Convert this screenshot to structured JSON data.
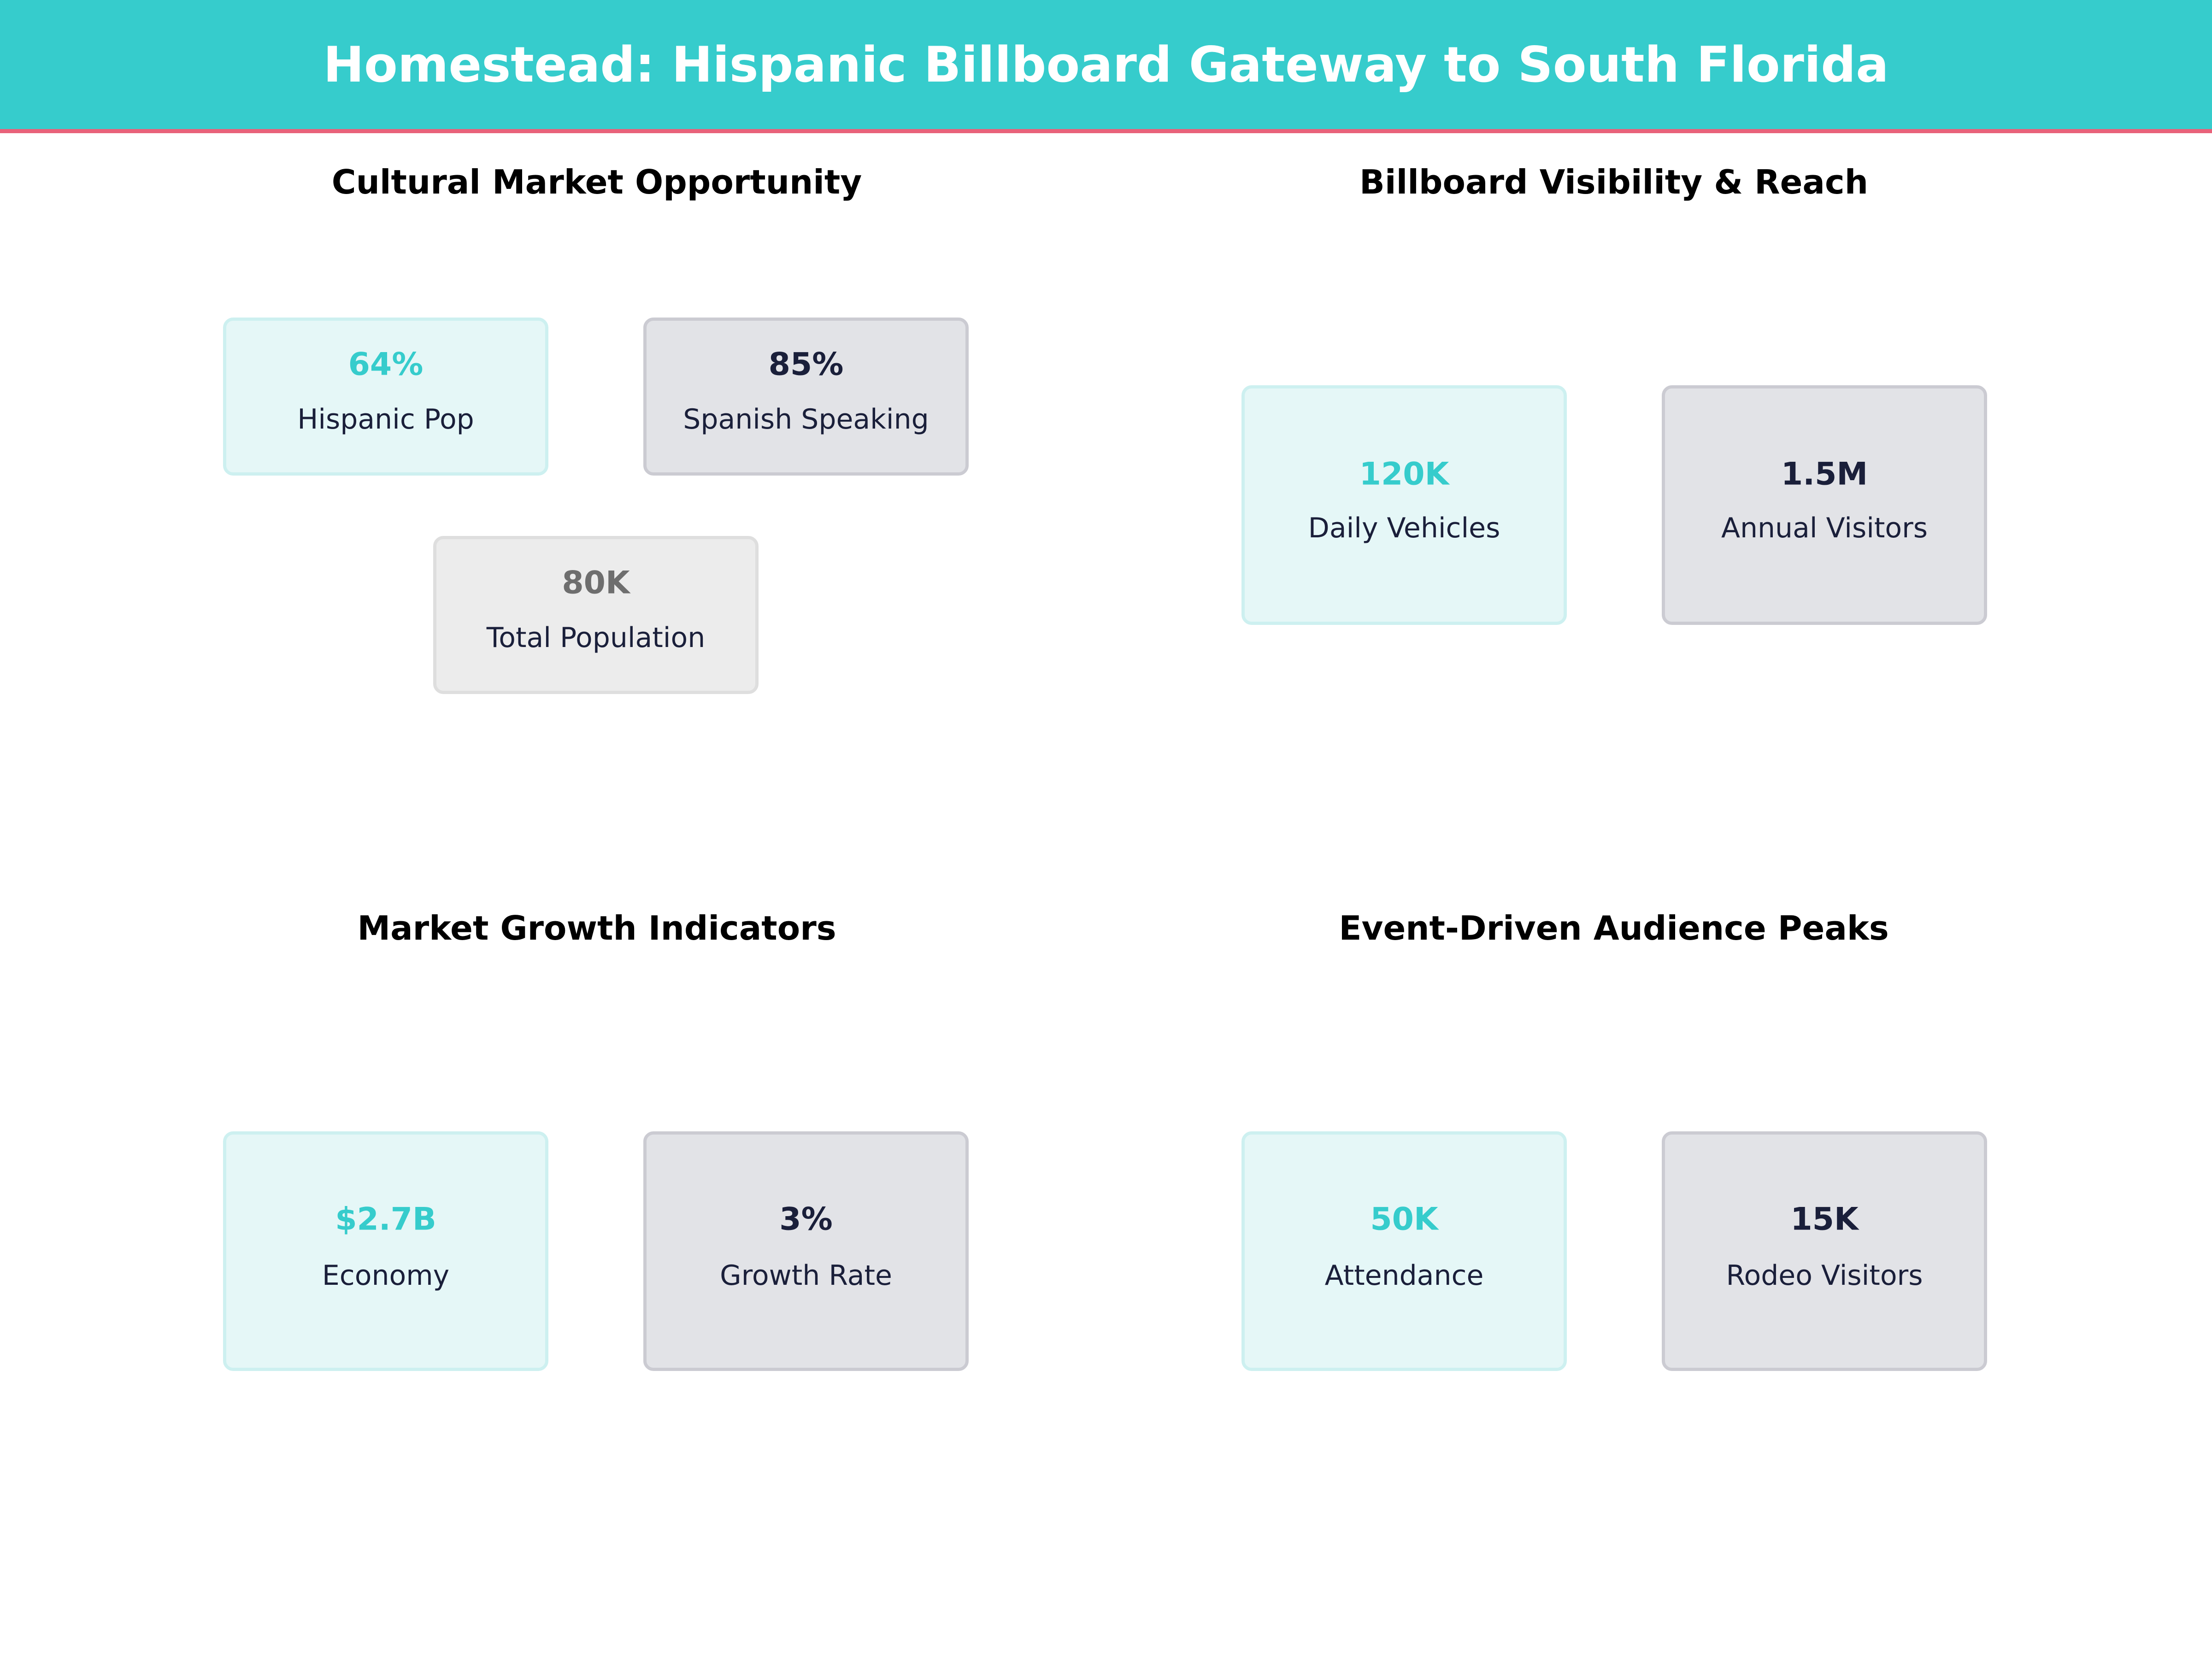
{
  "header": {
    "title": "Homestead: Hispanic Billboard Gateway to South Florida"
  },
  "colors": {
    "accent": "#36cccc",
    "stripe": "#e8627a",
    "dark": "#1a1f3a",
    "muted": "#6e6e6e"
  },
  "panels": [
    {
      "title": "Cultural Market Opportunity",
      "cards": [
        {
          "value": "64%",
          "label": "Hispanic Pop"
        },
        {
          "value": "85%",
          "label": "Spanish Speaking"
        },
        {
          "value": "80K",
          "label": "Total Population"
        }
      ]
    },
    {
      "title": "Billboard Visibility & Reach",
      "cards": [
        {
          "value": "120K",
          "label": "Daily Vehicles"
        },
        {
          "value": "1.5M",
          "label": "Annual Visitors"
        }
      ]
    },
    {
      "title": "Market Growth Indicators",
      "cards": [
        {
          "value": "$2.7B",
          "label": "Economy"
        },
        {
          "value": "3%",
          "label": "Growth Rate"
        }
      ]
    },
    {
      "title": "Event-Driven Audience Peaks",
      "cards": [
        {
          "value": "50K",
          "label": "Attendance"
        },
        {
          "value": "15K",
          "label": "Rodeo Visitors"
        }
      ]
    }
  ]
}
